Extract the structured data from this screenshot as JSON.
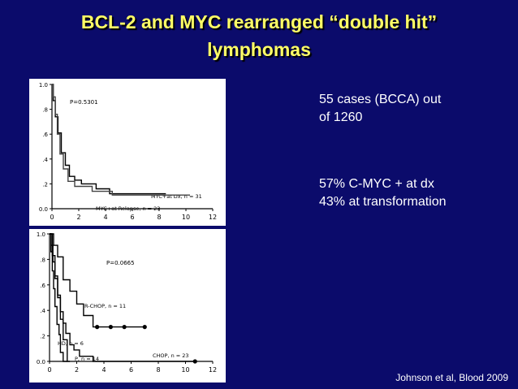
{
  "title_line1": "BCL-2 and MYC rearranged “double hit”",
  "title_line2": "lymphomas",
  "info1_line1": "55 cases (BCCA) out",
  "info1_line2": "of 1260",
  "info2_line1": "57% C-MYC + at dx",
  "info2_line2": "43% at transformation",
  "citation": "Johnson et al, Blood 2009",
  "chart_data": [
    {
      "type": "line",
      "step": true,
      "x_ticks": [
        0,
        2,
        4,
        6,
        8,
        10,
        12
      ],
      "y_ticks": [
        "0.0",
        ".2",
        ".4",
        ".6",
        ".8",
        "1.0"
      ],
      "xlim": [
        0,
        12
      ],
      "ylim": [
        0,
        1
      ],
      "p_label": "P=0.5301",
      "series": [
        {
          "name": "MYC+at Dx,  n = 31",
          "color": "#000000",
          "points": [
            [
              0,
              1
            ],
            [
              0.1,
              0.87
            ],
            [
              0.25,
              0.74
            ],
            [
              0.45,
              0.61
            ],
            [
              0.7,
              0.45
            ],
            [
              1.0,
              0.35
            ],
            [
              1.3,
              0.26
            ],
            [
              1.7,
              0.23
            ],
            [
              2.2,
              0.2
            ],
            [
              3.0,
              0.2
            ],
            [
              3.3,
              0.16
            ],
            [
              4.3,
              0.12
            ],
            [
              5.5,
              0.12
            ],
            [
              8.5,
              0.12
            ]
          ]
        },
        {
          "name": "MYC+at Relapse,  n = 23",
          "color": "#444444",
          "points": [
            [
              0,
              1
            ],
            [
              0.1,
              0.9
            ],
            [
              0.25,
              0.76
            ],
            [
              0.4,
              0.6
            ],
            [
              0.6,
              0.44
            ],
            [
              0.85,
              0.32
            ],
            [
              1.2,
              0.22
            ],
            [
              1.7,
              0.18
            ],
            [
              2.5,
              0.18
            ],
            [
              3.0,
              0.14
            ],
            [
              4.0,
              0.14
            ],
            [
              4.5,
              0.11
            ],
            [
              10.3,
              0.11
            ]
          ]
        }
      ]
    },
    {
      "type": "line",
      "step": true,
      "x_ticks": [
        0,
        2,
        4,
        6,
        8,
        10,
        12
      ],
      "y_ticks": [
        "0.0",
        ".2",
        ".4",
        ".6",
        ".8",
        "1.0"
      ],
      "xlim": [
        0,
        12
      ],
      "ylim": [
        0,
        1
      ],
      "p_label": "P=0.0665",
      "series": [
        {
          "name": "R-CHOP, n = 11",
          "color": "#000000",
          "points": [
            [
              0,
              1
            ],
            [
              0.3,
              0.91
            ],
            [
              0.6,
              0.82
            ],
            [
              1.0,
              0.64
            ],
            [
              1.5,
              0.55
            ],
            [
              2.0,
              0.45
            ],
            [
              2.5,
              0.36
            ],
            [
              3.2,
              0.27
            ],
            [
              7.0,
              0.27
            ]
          ],
          "censored_x": [
            3.5,
            4.5,
            5.5,
            7.0
          ]
        },
        {
          "name": "HD, n = 6",
          "color": "#000000",
          "points": [
            [
              0,
              1
            ],
            [
              0.2,
              0.83
            ],
            [
              0.4,
              0.67
            ],
            [
              0.6,
              0.5
            ],
            [
              0.8,
              0.33
            ],
            [
              1.0,
              0.17
            ],
            [
              1.3,
              0
            ],
            [
              1.5,
              0
            ]
          ]
        },
        {
          "name": "P, n = 14",
          "color": "#000000",
          "points": [
            [
              0,
              1
            ],
            [
              0.1,
              0.86
            ],
            [
              0.2,
              0.71
            ],
            [
              0.3,
              0.57
            ],
            [
              0.4,
              0.43
            ],
            [
              0.55,
              0.29
            ],
            [
              0.7,
              0.21
            ],
            [
              0.8,
              0.07
            ],
            [
              1.0,
              0
            ],
            [
              1.3,
              0
            ]
          ]
        },
        {
          "name": "CHOP, n = 23",
          "color": "#000000",
          "points": [
            [
              0,
              1
            ],
            [
              0.1,
              0.91
            ],
            [
              0.25,
              0.78
            ],
            [
              0.4,
              0.65
            ],
            [
              0.6,
              0.52
            ],
            [
              0.8,
              0.39
            ],
            [
              1.0,
              0.3
            ],
            [
              1.2,
              0.22
            ],
            [
              1.5,
              0.13
            ],
            [
              1.8,
              0.09
            ],
            [
              2.2,
              0.04
            ],
            [
              2.8,
              0.04
            ],
            [
              3.2,
              0
            ],
            [
              10.7,
              0
            ]
          ],
          "censored_x": [
            10.7
          ]
        }
      ]
    }
  ]
}
